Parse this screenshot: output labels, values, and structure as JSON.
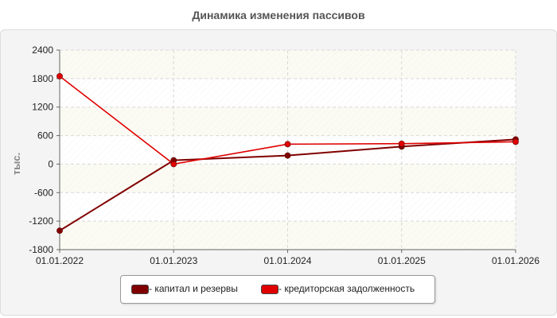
{
  "chart_data": {
    "type": "line",
    "title": "Динамика изменения пассивов",
    "ylabel": "тыс.",
    "xlabel": "",
    "x": [
      "01.01.2022",
      "01.01.2023",
      "01.01.2024",
      "01.01.2025",
      "01.01.2026"
    ],
    "ylim": [
      -1800,
      2400
    ],
    "yticks": [
      "2400",
      "1800",
      "1200",
      "600",
      "0",
      "-600",
      "-1200",
      "-1800"
    ],
    "ytick_values": [
      2400,
      1800,
      1200,
      600,
      0,
      -600,
      -1200,
      -1800
    ],
    "grid": true,
    "legend_position": "bottom",
    "series": [
      {
        "name": "- капитал и резервы",
        "color": "#800000",
        "values": [
          -1400,
          80,
          180,
          370,
          520
        ]
      },
      {
        "name": "- кредиторская задолженность",
        "color": "#e00000",
        "values": [
          1850,
          0,
          420,
          430,
          470
        ]
      }
    ]
  }
}
